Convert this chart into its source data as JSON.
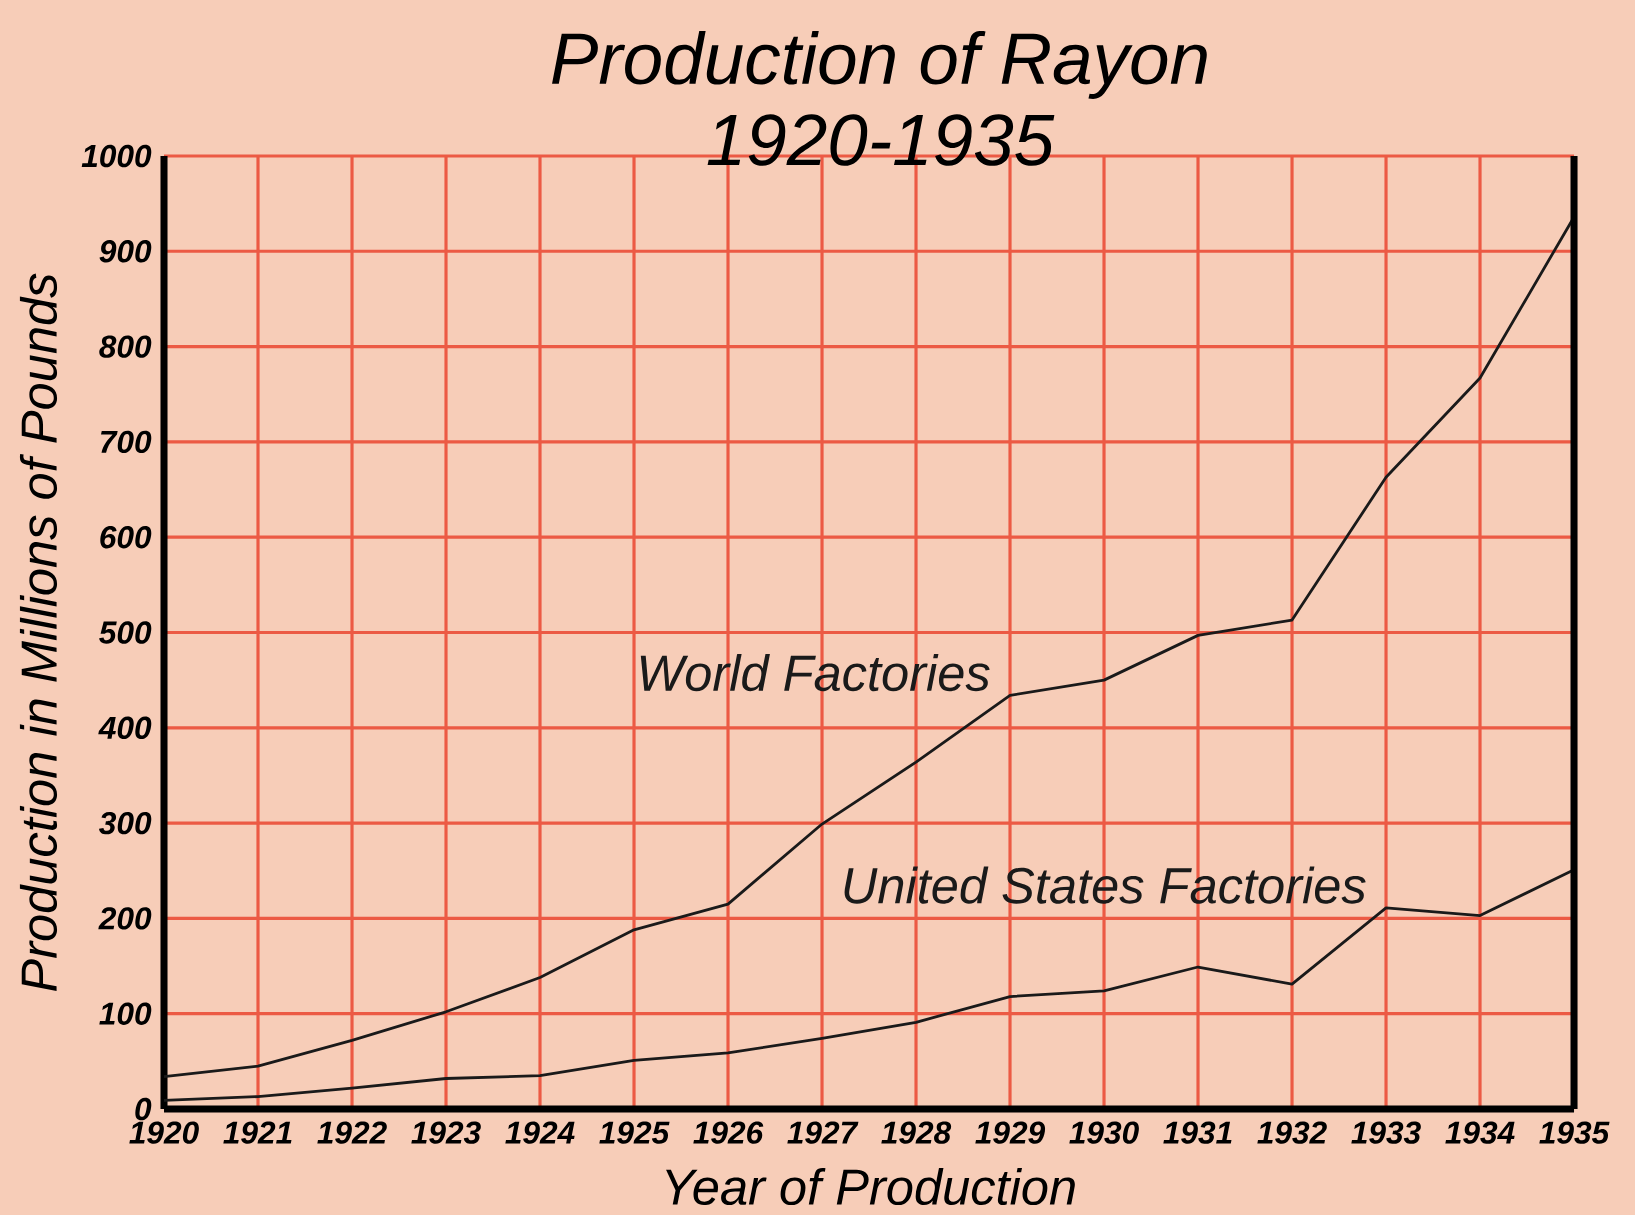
{
  "chart_data": {
    "type": "line",
    "title": "Production of Rayon",
    "subtitle": "1920-1935",
    "xlabel": "Year of Production",
    "ylabel": "Production in Millions of Pounds",
    "x": [
      1920,
      1921,
      1922,
      1923,
      1924,
      1925,
      1926,
      1927,
      1928,
      1929,
      1930,
      1931,
      1932,
      1933,
      1934,
      1935
    ],
    "series": [
      {
        "name": "World Factories",
        "color": "#1a1a1a",
        "values": [
          34,
          45,
          72,
          102,
          138,
          188,
          215,
          299,
          364,
          434,
          450,
          497,
          513,
          663,
          767,
          936
        ]
      },
      {
        "name": "United States Factories",
        "color": "#1a1a1a",
        "values": [
          9,
          13,
          22,
          32,
          35,
          51,
          59,
          74,
          91,
          118,
          124,
          149,
          131,
          211,
          203,
          251
        ]
      }
    ],
    "xlim": [
      1920,
      1935
    ],
    "ylim": [
      0,
      1000
    ],
    "xticks": [
      1920,
      1921,
      1922,
      1923,
      1924,
      1925,
      1926,
      1927,
      1928,
      1929,
      1930,
      1931,
      1932,
      1933,
      1934,
      1935
    ],
    "yticks": [
      0,
      100,
      200,
      300,
      400,
      500,
      600,
      700,
      800,
      900,
      1000
    ],
    "grid": true,
    "marker": "none",
    "line_style": "solid"
  }
}
